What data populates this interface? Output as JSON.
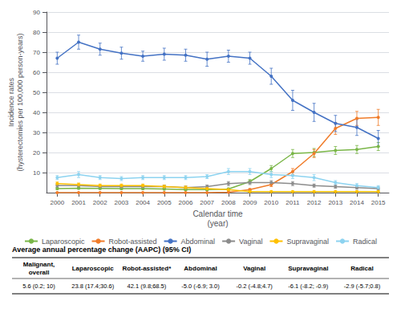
{
  "chart_data": {
    "type": "line",
    "xlabel": "Calendar time\n(year)",
    "ylabel": "Incidence rates\n(hysterectomies per 100,000 person-years)",
    "x": [
      2000,
      2001,
      2002,
      2003,
      2004,
      2005,
      2006,
      2007,
      2008,
      2009,
      2010,
      2011,
      2012,
      2013,
      2014,
      2015
    ],
    "xlim": [
      1999.5,
      2015.5
    ],
    "xticks": [
      2000,
      2001,
      2002,
      2003,
      2004,
      2005,
      2006,
      2007,
      2008,
      2009,
      2010,
      2011,
      2012,
      2013,
      2014,
      2015
    ],
    "ylim": [
      0,
      90
    ],
    "yticks": [
      10,
      20,
      30,
      40,
      50,
      60,
      70,
      80,
      90
    ],
    "grid": "y",
    "legend": "bottom",
    "marker": "circle",
    "series": [
      {
        "name": "Laparoscopic",
        "color": "#7ab648",
        "values": [
          2.0,
          2.2,
          2.1,
          2.0,
          2.0,
          1.8,
          1.5,
          1.5,
          1.8,
          5.5,
          12.0,
          19.5,
          20.0,
          21.0,
          21.5,
          23.0
        ],
        "errors": [
          0.5,
          0.5,
          0.5,
          0.5,
          0.5,
          0.5,
          0.5,
          0.5,
          0.5,
          1.0,
          1.5,
          2.0,
          2.0,
          2.0,
          2.0,
          2.0
        ]
      },
      {
        "name": "Robot-assisted",
        "color": "#f07c2a",
        "values": [
          0.0,
          0.0,
          0.0,
          0.0,
          0.0,
          0.0,
          0.0,
          0.0,
          0.2,
          1.5,
          4.0,
          10.5,
          19.5,
          32.0,
          37.0,
          37.5
        ],
        "errors": [
          0.0,
          0.0,
          0.0,
          0.0,
          0.0,
          0.0,
          0.0,
          0.0,
          0.1,
          0.5,
          1.0,
          1.5,
          2.0,
          3.0,
          3.5,
          4.0
        ]
      },
      {
        "name": "Abdominal",
        "color": "#4472c4",
        "values": [
          67.0,
          75.0,
          71.5,
          69.5,
          68.0,
          69.0,
          68.5,
          66.5,
          68.0,
          67.0,
          58.0,
          46.0,
          40.0,
          34.5,
          32.5,
          27.0
        ],
        "errors": [
          3.0,
          3.5,
          3.0,
          3.0,
          2.5,
          3.0,
          3.0,
          3.5,
          3.0,
          3.0,
          4.0,
          5.0,
          4.5,
          4.0,
          4.0,
          4.0
        ]
      },
      {
        "name": "Vaginal",
        "color": "#8c8c8c",
        "values": [
          3.5,
          3.5,
          3.0,
          3.0,
          3.0,
          3.0,
          2.5,
          3.0,
          4.5,
          5.0,
          5.0,
          4.5,
          3.5,
          3.0,
          2.5,
          2.0
        ],
        "errors": [
          0.8,
          0.8,
          0.8,
          0.8,
          0.8,
          0.8,
          0.8,
          0.8,
          1.0,
          1.0,
          1.0,
          1.0,
          0.8,
          0.8,
          0.8,
          0.8
        ]
      },
      {
        "name": "Supravaginal",
        "color": "#ffc000",
        "values": [
          4.5,
          4.0,
          3.5,
          3.5,
          3.5,
          3.0,
          2.5,
          2.0,
          1.5,
          0.5,
          0.5,
          0.5,
          0.5,
          0.5,
          0.5,
          0.5
        ],
        "errors": [
          0.8,
          0.8,
          0.8,
          0.8,
          0.8,
          0.8,
          0.8,
          0.5,
          0.5,
          0.3,
          0.3,
          0.3,
          0.3,
          0.3,
          0.3,
          0.3
        ]
      },
      {
        "name": "Radical",
        "color": "#8dd3f0",
        "values": [
          7.5,
          9.0,
          7.5,
          7.0,
          7.5,
          7.5,
          7.5,
          8.0,
          10.5,
          10.5,
          9.0,
          8.5,
          7.5,
          5.0,
          3.5,
          2.5
        ],
        "errors": [
          1.0,
          1.5,
          1.0,
          1.0,
          1.0,
          1.0,
          1.0,
          1.0,
          1.5,
          1.5,
          1.5,
          1.5,
          1.5,
          1.0,
          1.0,
          1.0
        ]
      }
    ],
    "table": {
      "title": "Average annual percentage change (AAPC) (95% CI)",
      "headers": [
        "Malignant,\noverall",
        "Laparoscopic",
        "Robot-assisted*",
        "Abdominal",
        "Vaginal",
        "Supravaginal",
        "Radical"
      ],
      "values": [
        "5.6 (0.2; 10)",
        "23.8 (17.4;30.6)",
        "42.1 (9.8;68.5)",
        "-5.0 (-6.9; 3.0)",
        "-0.2 (-4.8;4.7)",
        "-6.1 (-8.2; -0.9)",
        "-2.9 (-5.7;0.8)"
      ]
    }
  }
}
